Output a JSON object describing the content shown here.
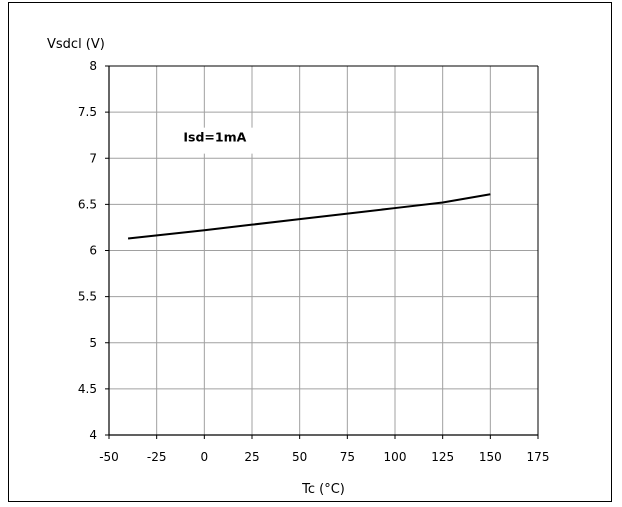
{
  "chart_data": {
    "type": "line",
    "title": "",
    "ylabel": "Vsdcl (V)",
    "xlabel": "Tc (°C)",
    "xlim": [
      -50,
      175
    ],
    "ylim": [
      4,
      8
    ],
    "x_ticks": [
      -50,
      -25,
      0,
      25,
      50,
      75,
      100,
      125,
      150,
      175
    ],
    "y_ticks": [
      4,
      4.5,
      5,
      5.5,
      6,
      6.5,
      7,
      7.5,
      8
    ],
    "x_tick_labels": [
      "-50",
      "-25",
      "0",
      "25",
      "50",
      "75",
      "100",
      "125",
      "150",
      "175"
    ],
    "y_tick_labels": [
      "4",
      "4.5",
      "5",
      "5.5",
      "6",
      "6.5",
      "7",
      "7.5",
      "8"
    ],
    "grid": true,
    "annotation": "Isd=1mA",
    "series": [
      {
        "x": [
          -40,
          0,
          25,
          50,
          75,
          100,
          125,
          150
        ],
        "y": [
          6.13,
          6.22,
          6.28,
          6.34,
          6.4,
          6.46,
          6.52,
          6.61
        ]
      }
    ],
    "colors": {
      "line": "#000000",
      "grid": "#a0a0a0",
      "axis": "#000000",
      "background": "#ffffff"
    }
  }
}
